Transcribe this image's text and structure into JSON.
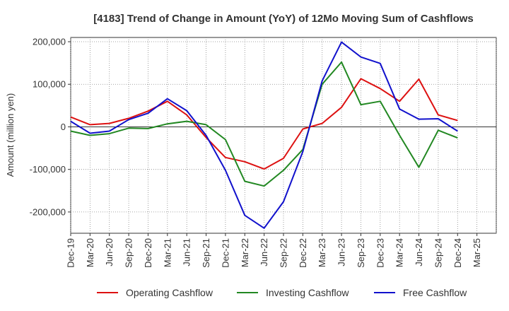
{
  "chart_data": {
    "type": "line",
    "title": "[4183]  Trend of Change in Amount (YoY) of 12Mo Moving Sum of Cashflows",
    "ylabel": "Amount (million yen)",
    "xlabel": "",
    "ylim": [
      -250000,
      210000
    ],
    "yticks": [
      200000,
      100000,
      0,
      -100000,
      -200000
    ],
    "ytick_labels": [
      "200,000",
      "100,000",
      "0",
      "-100,000",
      "-200,000"
    ],
    "categories": [
      "Dec-19",
      "Mar-20",
      "Jun-20",
      "Sep-20",
      "Dec-20",
      "Mar-21",
      "Jun-21",
      "Sep-21",
      "Dec-21",
      "Mar-22",
      "Jun-22",
      "Sep-22",
      "Dec-22",
      "Mar-23",
      "Jun-23",
      "Sep-23",
      "Dec-23",
      "Mar-24",
      "Jun-24",
      "Sep-24",
      "Dec-24",
      "Mar-25"
    ],
    "series": [
      {
        "name": "Operating Cashflow",
        "color": "#dd1111",
        "values": [
          23000,
          5000,
          8000,
          20000,
          37000,
          60000,
          28000,
          -25000,
          -72000,
          -82000,
          -99000,
          -74000,
          -5000,
          8000,
          46000,
          113000,
          90000,
          60000,
          112000,
          28000,
          15000,
          null
        ]
      },
      {
        "name": "Investing Cashflow",
        "color": "#228822",
        "values": [
          -10000,
          -20000,
          -16000,
          -3000,
          -4000,
          7000,
          13000,
          5000,
          -30000,
          -128000,
          -139000,
          -102000,
          -53000,
          100000,
          152000,
          52000,
          60000,
          -20000,
          -95000,
          -8000,
          -26000,
          null
        ]
      },
      {
        "name": "Free Cashflow",
        "color": "#1111cc",
        "values": [
          13000,
          -15000,
          -10000,
          17000,
          32000,
          66000,
          38000,
          -20000,
          -102000,
          -208000,
          -238000,
          -176000,
          -58000,
          108000,
          199000,
          164000,
          149000,
          42000,
          18000,
          19000,
          -10000,
          null
        ]
      }
    ],
    "grid": true,
    "legend_position": "bottom"
  }
}
